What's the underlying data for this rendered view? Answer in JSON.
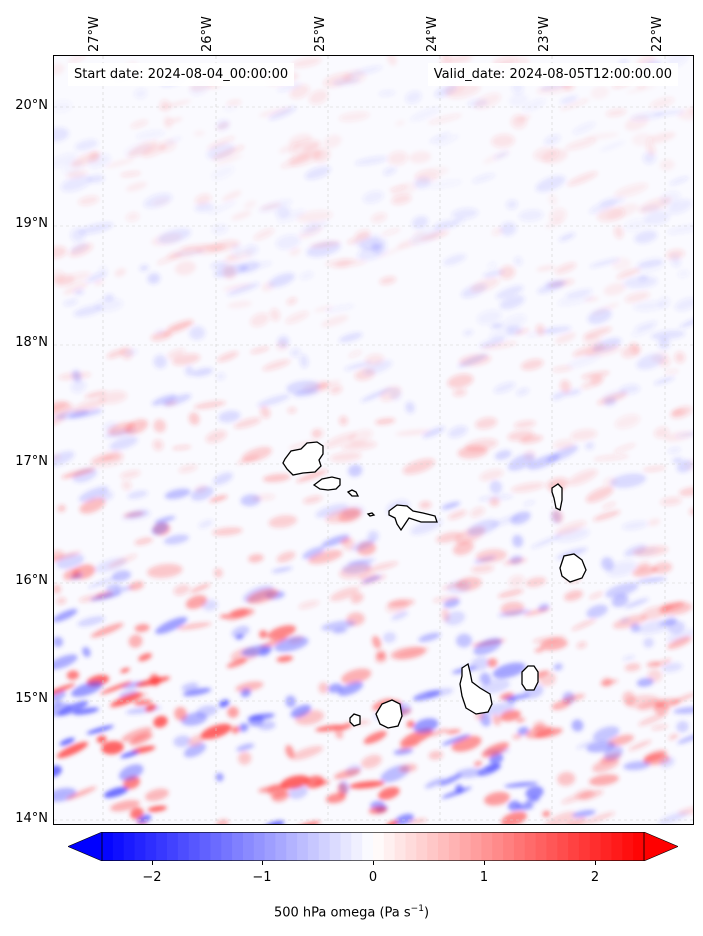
{
  "header": {
    "start_date": "Start date: 2024-08-04_00:00:00",
    "valid_date": "Valid_date: 2024-08-05T12:00:00.00"
  },
  "axes": {
    "lon_labels": [
      "27°W",
      "26°W",
      "25°W",
      "24°W",
      "23°W",
      "22°W"
    ],
    "lat_labels": [
      "20°N",
      "19°N",
      "18°N",
      "17°N",
      "16°N",
      "15°N",
      "14°N"
    ],
    "gridlines": "dashed-light-gray"
  },
  "colorbar": {
    "ticks": [
      "−2",
      "−1",
      "0",
      "1",
      "2"
    ],
    "label_main": "500 hPa omega (Pa s",
    "label_sup": "−1",
    "label_end": ")",
    "colormap": "bwr",
    "color_min": "#0000ff",
    "color_mid": "#ffffff",
    "color_max": "#ff0000",
    "extend": "both"
  },
  "field": {
    "variable": "500 hPa omega"
  },
  "islands": [
    "Santo Antão",
    "São Vicente",
    "Santa Luzia",
    "São Nicolau",
    "Sal",
    "Boa Vista",
    "Maio",
    "Santiago",
    "Fogo",
    "Brava"
  ]
}
